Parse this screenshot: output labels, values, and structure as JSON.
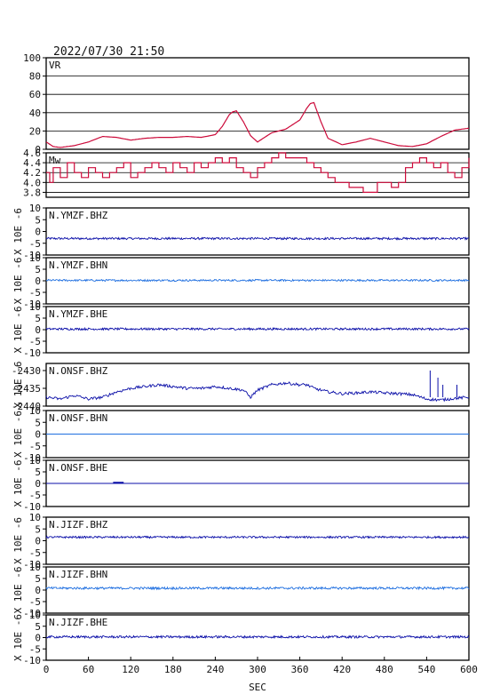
{
  "title": "2022/07/30 21:50",
  "x_axis": {
    "label": "SEC",
    "ticks": [
      "0",
      "60",
      "120",
      "180",
      "240",
      "300",
      "360",
      "420",
      "480",
      "540",
      "600"
    ]
  },
  "colors": {
    "vr": "#cc0a3a",
    "mw": "#cc0a3a",
    "dark_blue": "#0b0fa8",
    "light_blue": "#1f6fe0"
  },
  "chart_data": [
    {
      "type": "line",
      "name": "VR",
      "label": "VR",
      "ylim": [
        0,
        100
      ],
      "yticks": [
        "0",
        "20",
        "40",
        "60",
        "80",
        "100"
      ],
      "x": [
        0,
        10,
        20,
        40,
        60,
        80,
        100,
        120,
        140,
        160,
        180,
        200,
        220,
        240,
        250,
        260,
        265,
        270,
        280,
        290,
        300,
        320,
        340,
        360,
        370,
        375,
        380,
        390,
        400,
        420,
        440,
        460,
        480,
        500,
        520,
        540,
        560,
        580,
        600
      ],
      "y": [
        8,
        3,
        2,
        4,
        8,
        14,
        13,
        10,
        12,
        13,
        13,
        14,
        13,
        16,
        25,
        38,
        41,
        42,
        30,
        15,
        8,
        18,
        22,
        32,
        45,
        50,
        51,
        30,
        12,
        5,
        8,
        12,
        8,
        4,
        3,
        6,
        14,
        21,
        23
      ]
    },
    {
      "type": "step",
      "name": "Mw",
      "label": "Mw",
      "ylim": [
        3.7,
        4.6
      ],
      "yticks": [
        "3.8",
        "4.0",
        "4.2",
        "4.4",
        "4.6"
      ],
      "x": [
        0,
        5,
        10,
        20,
        30,
        40,
        50,
        60,
        70,
        80,
        90,
        100,
        110,
        120,
        130,
        140,
        150,
        160,
        170,
        180,
        190,
        200,
        210,
        220,
        230,
        240,
        250,
        260,
        270,
        280,
        290,
        300,
        310,
        320,
        330,
        340,
        350,
        360,
        370,
        380,
        390,
        400,
        410,
        420,
        430,
        440,
        450,
        460,
        470,
        480,
        490,
        500,
        510,
        520,
        530,
        540,
        550,
        560,
        570,
        580,
        590,
        600
      ],
      "y": [
        4.2,
        4.0,
        4.3,
        4.1,
        4.4,
        4.2,
        4.1,
        4.3,
        4.2,
        4.1,
        4.2,
        4.3,
        4.4,
        4.1,
        4.2,
        4.3,
        4.4,
        4.3,
        4.2,
        4.4,
        4.3,
        4.2,
        4.4,
        4.3,
        4.4,
        4.5,
        4.4,
        4.5,
        4.3,
        4.2,
        4.1,
        4.3,
        4.4,
        4.5,
        4.6,
        4.5,
        4.5,
        4.5,
        4.4,
        4.3,
        4.2,
        4.1,
        4.0,
        4.0,
        3.9,
        3.9,
        3.8,
        3.8,
        4.0,
        4.0,
        3.9,
        4.0,
        4.3,
        4.4,
        4.5,
        4.4,
        4.3,
        4.4,
        4.2,
        4.1,
        4.3,
        4.5
      ]
    },
    {
      "type": "line",
      "name": "N.YMZF.BHZ",
      "label": "N.YMZF.BHZ",
      "ylabel": "X 10E -6",
      "ylim": [
        -10,
        10
      ],
      "yticks": [
        "-10",
        "-5",
        "0",
        "5",
        "10"
      ],
      "baseline": -3,
      "amplitude": 0.45,
      "color_key": "dark_blue"
    },
    {
      "type": "line",
      "name": "N.YMZF.BHN",
      "label": "N.YMZF.BHN",
      "ylabel": "X 10E -6",
      "ylim": [
        -10,
        10
      ],
      "yticks": [
        "-10",
        "-5",
        "0",
        "5",
        "10"
      ],
      "baseline": 0.2,
      "amplitude": 0.4,
      "color_key": "light_blue"
    },
    {
      "type": "line",
      "name": "N.YMZF.BHE",
      "label": "N.YMZF.BHE",
      "ylabel": "X 10E -6",
      "ylim": [
        -10,
        10
      ],
      "yticks": [
        "-10",
        "-5",
        "0",
        "5",
        "10"
      ],
      "baseline": 0.3,
      "amplitude": 0.45,
      "color_key": "dark_blue"
    },
    {
      "type": "line",
      "name": "N.ONSF.BHZ",
      "label": "N.ONSF.BHZ",
      "ylabel": "X 10E -6",
      "ylim": [
        -2440,
        -2428
      ],
      "yticks": [
        "-2440",
        "-2435",
        "-2430"
      ],
      "x": [
        0,
        20,
        40,
        60,
        80,
        100,
        120,
        140,
        160,
        180,
        200,
        220,
        240,
        260,
        280,
        290,
        300,
        320,
        340,
        360,
        370,
        380,
        400,
        420,
        440,
        460,
        480,
        500,
        520,
        540,
        560,
        580,
        600
      ],
      "y": [
        -2437.5,
        -2438,
        -2437,
        -2438,
        -2437.5,
        -2436,
        -2435,
        -2434.5,
        -2434,
        -2434.5,
        -2435,
        -2435,
        -2434.5,
        -2435,
        -2435.5,
        -2437.5,
        -2435.5,
        -2434,
        -2433.5,
        -2434,
        -2434,
        -2435,
        -2436,
        -2436.5,
        -2436.3,
        -2436,
        -2436.3,
        -2436.5,
        -2436.8,
        -2438,
        -2438.3,
        -2437.8,
        -2437.5
      ],
      "color_key": "dark_blue"
    },
    {
      "type": "line",
      "name": "N.ONSF.BHN",
      "label": "N.ONSF.BHN",
      "ylabel": "X 10E -6",
      "ylim": [
        -10,
        10
      ],
      "yticks": [
        "-10",
        "-5",
        "0",
        "5",
        "10"
      ],
      "baseline": 0,
      "amplitude": 0,
      "color_key": "light_blue"
    },
    {
      "type": "line",
      "name": "N.ONSF.BHE",
      "label": "N.ONSF.BHE",
      "ylabel": "X 10E -6",
      "ylim": [
        -10,
        10
      ],
      "yticks": [
        "-10",
        "-5",
        "0",
        "5",
        "10"
      ],
      "baseline": 0,
      "amplitude": 0,
      "color_key": "dark_blue"
    },
    {
      "type": "line",
      "name": "N.JIZF.BHZ",
      "label": "N.JIZF.BHZ",
      "ylabel": "X 10E -6",
      "ylim": [
        -10,
        10
      ],
      "yticks": [
        "-10",
        "-5",
        "0",
        "5",
        "10"
      ],
      "baseline": 1.5,
      "amplitude": 0.4,
      "color_key": "dark_blue"
    },
    {
      "type": "line",
      "name": "N.JIZF.BHN",
      "label": "N.JIZF.BHN",
      "ylabel": "X 10E -6",
      "ylim": [
        -10,
        10
      ],
      "yticks": [
        "-10",
        "-5",
        "0",
        "5",
        "10"
      ],
      "baseline": 0.8,
      "amplitude": 0.5,
      "color_key": "light_blue"
    },
    {
      "type": "line",
      "name": "N.JIZF.BHE",
      "label": "N.JIZF.BHE",
      "ylabel": "X 10E -6",
      "ylim": [
        -10,
        10
      ],
      "yticks": [
        "-10",
        "-5",
        "0",
        "5",
        "10"
      ],
      "baseline": 0.3,
      "amplitude": 0.5,
      "color_key": "dark_blue"
    }
  ]
}
